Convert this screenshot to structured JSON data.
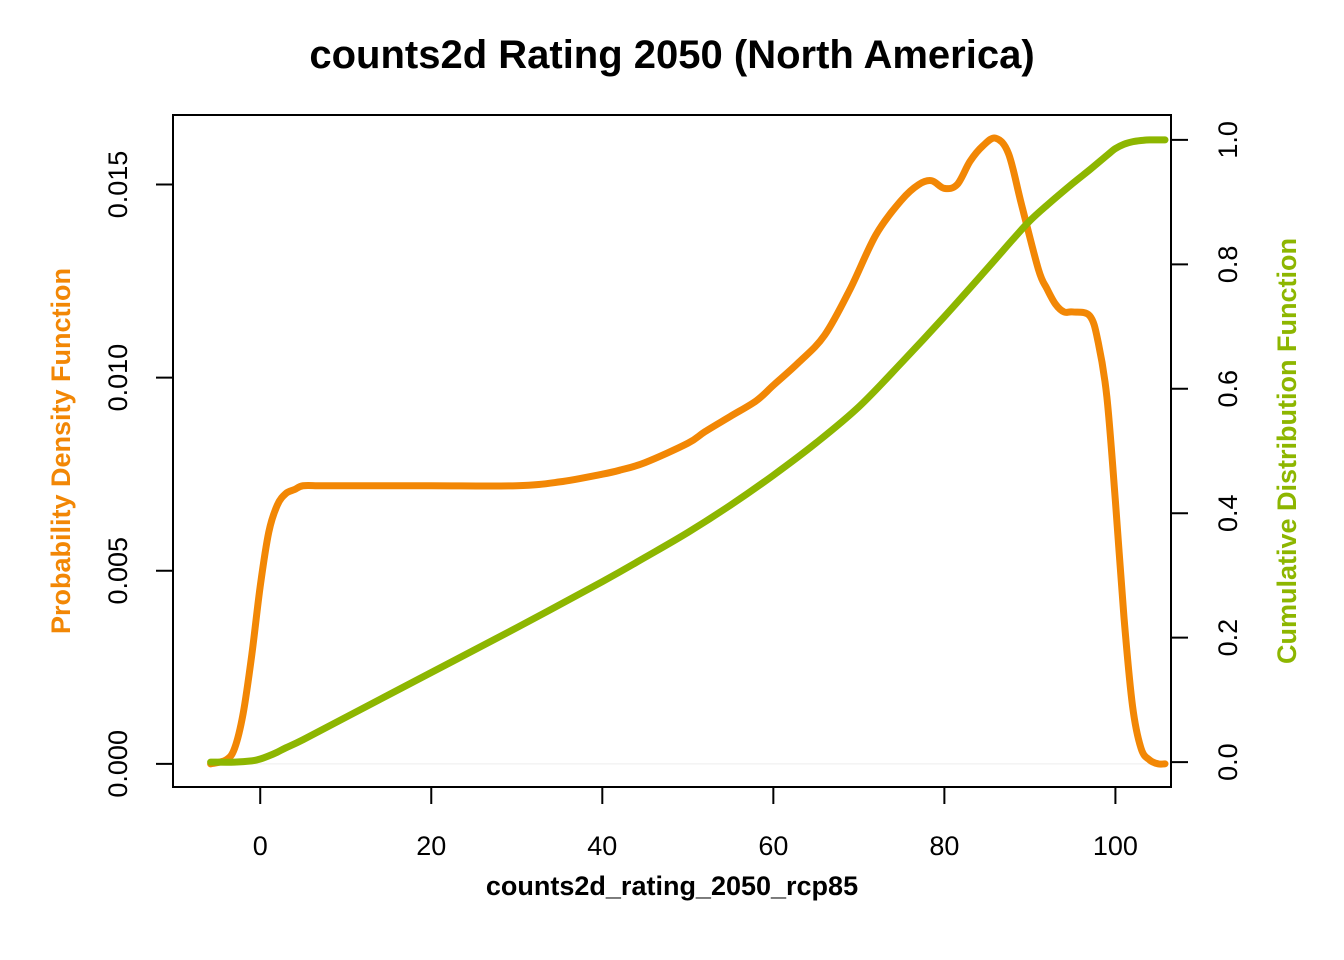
{
  "chart_data": {
    "type": "line",
    "title": "counts2d Rating 2050 (North America)",
    "xlabel": "counts2d_rating_2050_rcp85",
    "ylabel_left": "Probability Density Function",
    "ylabel_right": "Cumulative Distribution Function",
    "xlim": [
      -10.2,
      106.5
    ],
    "ylim_left": [
      -0.0006,
      0.0168
    ],
    "ylim_right": [
      -0.04,
      1.04
    ],
    "x_ticks": [
      0,
      20,
      40,
      60,
      80,
      100
    ],
    "x_tick_labels": [
      "0",
      "20",
      "40",
      "60",
      "80",
      "100"
    ],
    "y_left_ticks": [
      0.0,
      0.005,
      0.01,
      0.015
    ],
    "y_left_tick_labels": [
      "0.000",
      "0.005",
      "0.010",
      "0.015"
    ],
    "y_right_ticks": [
      0.0,
      0.2,
      0.4,
      0.6,
      0.8,
      1.0
    ],
    "y_right_tick_labels": [
      "0.0",
      "0.2",
      "0.4",
      "0.6",
      "0.8",
      "1.0"
    ],
    "grid": false,
    "series": [
      {
        "name": "Probability Density Function",
        "axis": "left",
        "color": "#F28705",
        "x": [
          -5.8,
          -4,
          -3,
          -2,
          -1,
          0,
          1,
          2,
          3,
          4,
          5,
          7,
          10,
          20,
          30,
          35,
          40,
          42,
          45,
          50,
          52,
          55,
          58,
          60,
          63,
          66,
          69,
          72,
          75,
          77,
          78.5,
          80,
          81.5,
          83,
          84.5,
          86,
          87.5,
          89,
          91,
          92,
          93,
          94,
          95,
          97,
          98,
          99,
          100,
          101,
          102,
          103,
          104,
          105,
          105.8
        ],
        "y": [
          0.0,
          0.0001,
          0.0004,
          0.0013,
          0.0028,
          0.0046,
          0.006,
          0.0067,
          0.007,
          0.0071,
          0.0072,
          0.0072,
          0.0072,
          0.0072,
          0.0072,
          0.0073,
          0.0075,
          0.0076,
          0.0078,
          0.0083,
          0.0086,
          0.009,
          0.0094,
          0.0098,
          0.0104,
          0.0111,
          0.0123,
          0.0137,
          0.0146,
          0.015,
          0.0151,
          0.0149,
          0.015,
          0.0156,
          0.016,
          0.0162,
          0.0158,
          0.0145,
          0.0128,
          0.0123,
          0.0119,
          0.0117,
          0.0117,
          0.0116,
          0.0109,
          0.0095,
          0.0068,
          0.0038,
          0.0015,
          0.0004,
          0.0001,
          0.0,
          0.0
        ]
      },
      {
        "name": "Cumulative Distribution Function",
        "axis": "right",
        "color": "#8DB600",
        "x": [
          -5.8,
          -3,
          -1,
          0,
          1,
          2,
          3,
          5,
          10,
          20,
          30,
          40,
          45,
          50,
          55,
          60,
          65,
          70,
          75,
          80,
          85,
          88,
          90,
          92,
          95,
          97,
          99,
          100,
          101,
          102,
          103,
          104,
          105,
          105.8
        ],
        "y": [
          0.0,
          0.0,
          0.002,
          0.005,
          0.01,
          0.016,
          0.023,
          0.036,
          0.072,
          0.144,
          0.216,
          0.29,
          0.329,
          0.369,
          0.413,
          0.461,
          0.513,
          0.571,
          0.642,
          0.716,
          0.793,
          0.84,
          0.87,
          0.895,
          0.93,
          0.952,
          0.975,
          0.986,
          0.993,
          0.997,
          0.999,
          1.0,
          1.0,
          1.0
        ]
      }
    ]
  }
}
